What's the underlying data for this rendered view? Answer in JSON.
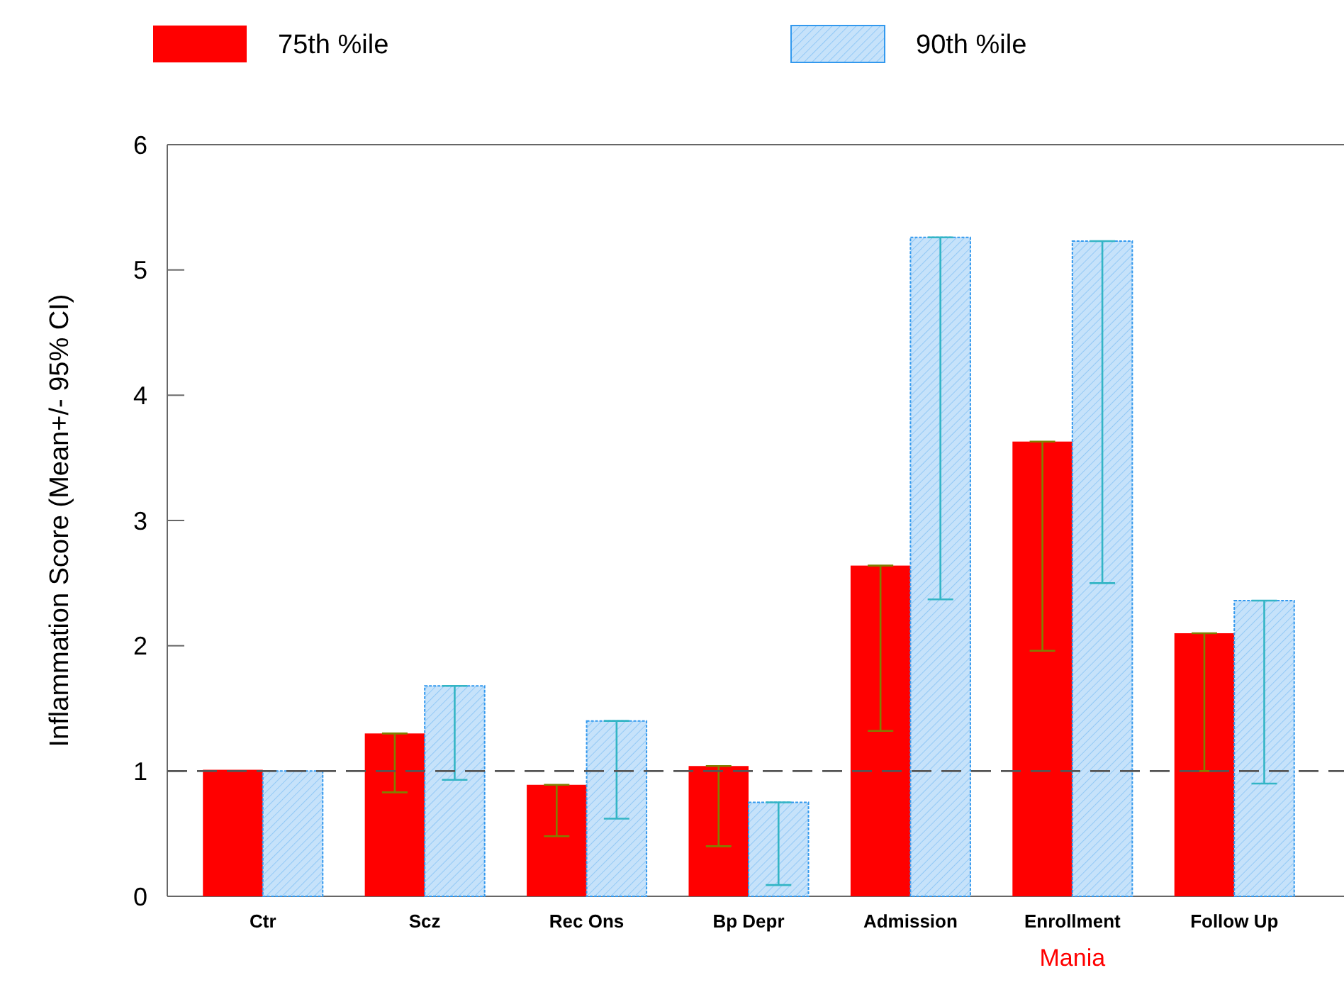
{
  "chart_data": {
    "type": "bar",
    "ylabel": "Inflammation Score (Mean+/- 95% CI)",
    "categories": [
      "Ctr",
      "Scz",
      "Rec Ons",
      "Bp Depr",
      "Admission",
      "Enrollment",
      "Follow Up"
    ],
    "series": [
      {
        "name": "75th %ile",
        "color": "#ff0000",
        "values": [
          1.01,
          1.3,
          0.89,
          1.04,
          2.64,
          3.63,
          2.1
        ],
        "errors": [
          null,
          [
            0.83,
            1.3
          ],
          [
            0.48,
            0.89
          ],
          [
            0.4,
            1.04
          ],
          [
            1.32,
            2.64
          ],
          [
            1.96,
            3.63
          ],
          [
            1.0,
            2.1
          ]
        ]
      },
      {
        "name": "90th %ile",
        "color": "#3399ee",
        "values": [
          1.0,
          1.68,
          1.4,
          0.75,
          5.26,
          5.23,
          2.36
        ],
        "errors": [
          null,
          [
            0.93,
            1.68
          ],
          [
            0.62,
            1.4
          ],
          [
            0.09,
            0.75
          ],
          [
            2.37,
            5.26
          ],
          [
            2.5,
            5.23
          ],
          [
            0.9,
            2.36
          ]
        ]
      }
    ],
    "ylim": [
      0,
      6
    ],
    "yticks": [
      0,
      1,
      2,
      3,
      4,
      5,
      6
    ],
    "grid": false,
    "legend": "top",
    "ref_lines": [
      {
        "axis": "y",
        "value": 1,
        "line_style": "dashed",
        "color": "#555555"
      }
    ],
    "annotations": [
      "Mania"
    ]
  }
}
